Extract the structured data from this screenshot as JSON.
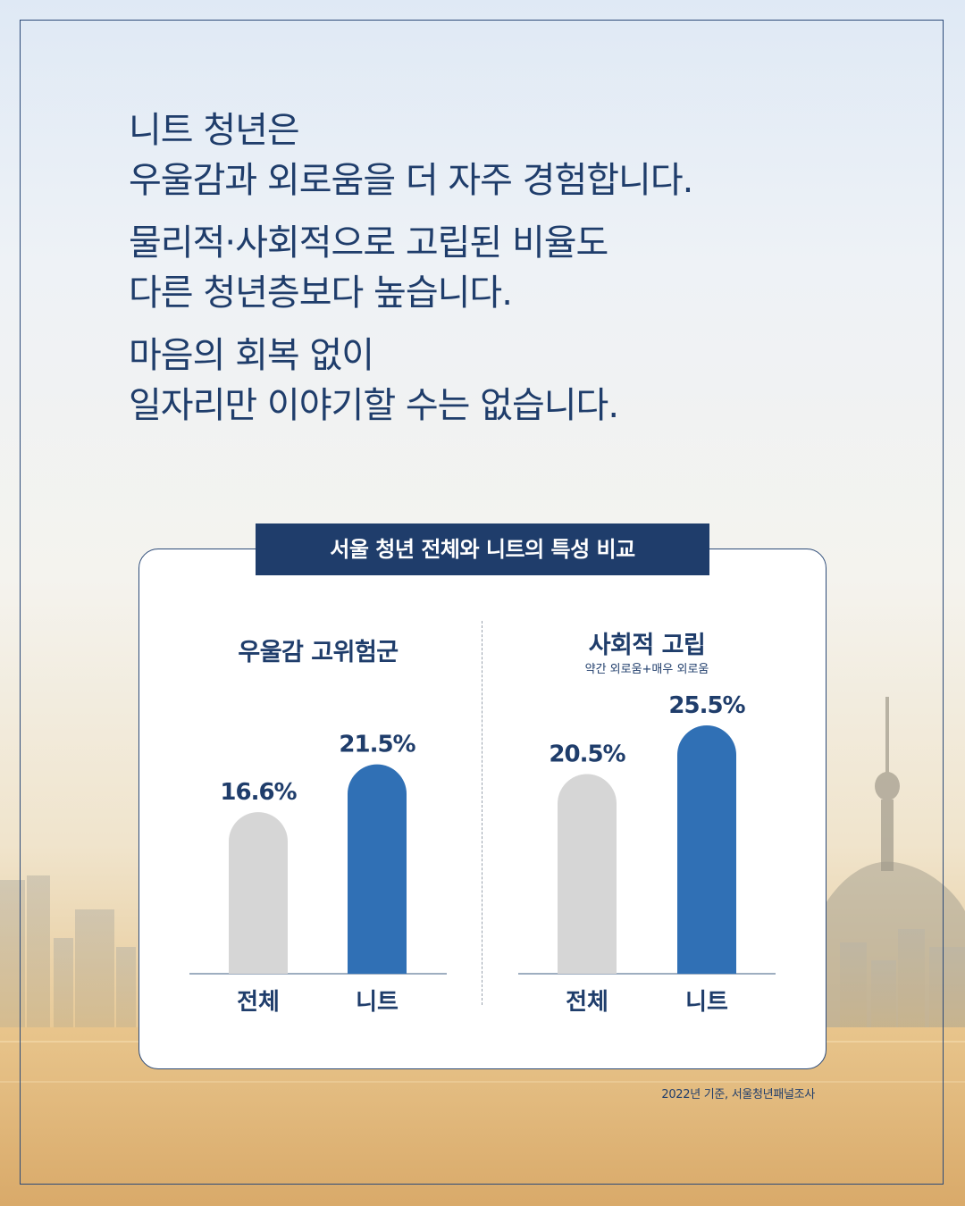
{
  "headline": [
    [
      "니트 청년은",
      "우울감과 외로움을 더 자주 경험합니다."
    ],
    [
      "물리적·사회적으로 고립된 비율도",
      "다른 청년층보다 높습니다."
    ],
    [
      "마음의 회복 없이",
      "일자리만 이야기할 수는 없습니다."
    ]
  ],
  "card_title": "서울 청년 전체와 니트의 특성 비교",
  "source": "2022년 기준, 서울청년패널조사",
  "colors": {
    "navy": "#1f3d6b",
    "bar_gray": "#d6d6d6",
    "bar_blue": "#3070b5",
    "axis": "#7f93ab"
  },
  "chart_data": [
    {
      "type": "bar",
      "title": "우울감 고위험군",
      "subtitle": "",
      "categories": [
        "전체",
        "니트"
      ],
      "values": [
        16.6,
        21.5
      ],
      "value_labels": [
        "16.6%",
        "21.5%"
      ],
      "unit": "%"
    },
    {
      "type": "bar",
      "title": "사회적 고립",
      "subtitle": "약간 외로움+매우 외로움",
      "categories": [
        "전체",
        "니트"
      ],
      "values": [
        20.5,
        25.5
      ],
      "value_labels": [
        "20.5%",
        "25.5%"
      ],
      "unit": "%"
    }
  ]
}
